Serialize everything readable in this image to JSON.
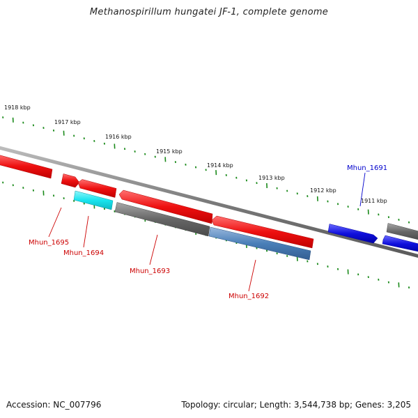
{
  "header": {
    "title": "Methanospirillum hungatei JF-1, complete genome"
  },
  "footer": {
    "accession": "Accession: NC_007796",
    "stats": "Topology: circular; Length: 3,544,738 bp; Genes: 3,205"
  },
  "colors": {
    "backbone": "#7a7a7a",
    "tick": "#1a8a1a",
    "red": "#ee1a1a",
    "cyan": "#18e4ee",
    "gray": "#666666",
    "steelblue": "#4a7fb8",
    "blue": "#1010dd",
    "label_red": "#cc0000",
    "label_blue": "#0000cc"
  },
  "map": {
    "kbp_labels": [
      "1918 kbp",
      "1917 kbp",
      "1916 kbp",
      "1915 kbp",
      "1914 kbp",
      "1913 kbp",
      "1912 kbp",
      "1911 kbp"
    ],
    "gene_labels": [
      {
        "name": "Mhun_1695",
        "color": "red"
      },
      {
        "name": "Mhun_1694",
        "color": "red"
      },
      {
        "name": "Mhun_1693",
        "color": "red"
      },
      {
        "name": "Mhun_1692",
        "color": "red"
      },
      {
        "name": "Mhun_1691",
        "color": "blue"
      }
    ]
  }
}
